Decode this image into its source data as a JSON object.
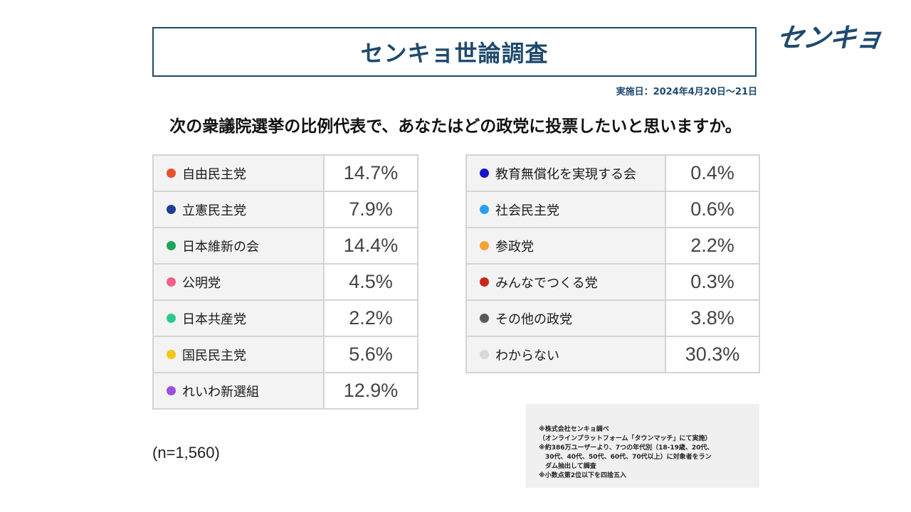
{
  "title": "センキョ世論調査",
  "logo_text": "センキョ",
  "survey_date": "実施日：2024年4月20日～21日",
  "question": "次の衆議院選挙の比例代表で、あなたはどの政党に投票したいと思いますか。",
  "sample_size": "(n=1,560)",
  "notes": [
    "※株式会社センキョ調べ",
    "（オンラインプラットフォーム「タウンマッチ」にて実施）",
    "※約386万ユーザーより、7つの年代別（18-19歳、20代、",
    "30代、40代、50代、60代、70代以上）に対象者をラン",
    "ダム抽出して調査",
    "※小数点第2位以下を四捨五入"
  ],
  "chart_data": {
    "type": "table",
    "title": "センキョ世論調査",
    "question": "次の衆議院選挙の比例代表で、あなたはどの政党に投票したいと思いますか。",
    "unit": "%",
    "n": 1560,
    "categories": [
      "自由民主党",
      "立憲民主党",
      "日本維新の会",
      "公明党",
      "日本共産党",
      "国民民主党",
      "れいわ新選組",
      "教育無償化を実現する会",
      "社会民主党",
      "参政党",
      "みんなでつくる党",
      "その他の政党",
      "わからない"
    ],
    "values": [
      14.7,
      7.9,
      14.4,
      4.5,
      2.2,
      5.6,
      12.9,
      0.4,
      0.6,
      2.2,
      0.3,
      3.8,
      30.3
    ],
    "left_column": [
      {
        "party": "自由民主党",
        "value": "14.7%",
        "color": "#e8502a"
      },
      {
        "party": "立憲民主党",
        "value": "7.9%",
        "color": "#1c3f94"
      },
      {
        "party": "日本維新の会",
        "value": "14.4%",
        "color": "#1fa35a"
      },
      {
        "party": "公明党",
        "value": "4.5%",
        "color": "#f0628a"
      },
      {
        "party": "日本共産党",
        "value": "2.2%",
        "color": "#2ec98a"
      },
      {
        "party": "国民民主党",
        "value": "5.6%",
        "color": "#f5c518"
      },
      {
        "party": "れいわ新選組",
        "value": "12.9%",
        "color": "#9b4fe0"
      }
    ],
    "right_column": [
      {
        "party": "教育無償化を実現する会",
        "value": "0.4%",
        "color": "#1414c8"
      },
      {
        "party": "社会民主党",
        "value": "0.6%",
        "color": "#2aa0f0"
      },
      {
        "party": "参政党",
        "value": "2.2%",
        "color": "#f7a234"
      },
      {
        "party": "みんなでつくる党",
        "value": "0.3%",
        "color": "#c8281c"
      },
      {
        "party": "その他の政党",
        "value": "3.8%",
        "color": "#5a5a5a"
      },
      {
        "party": "わからない",
        "value": "30.3%",
        "color": "#d8d8d8"
      }
    ]
  }
}
